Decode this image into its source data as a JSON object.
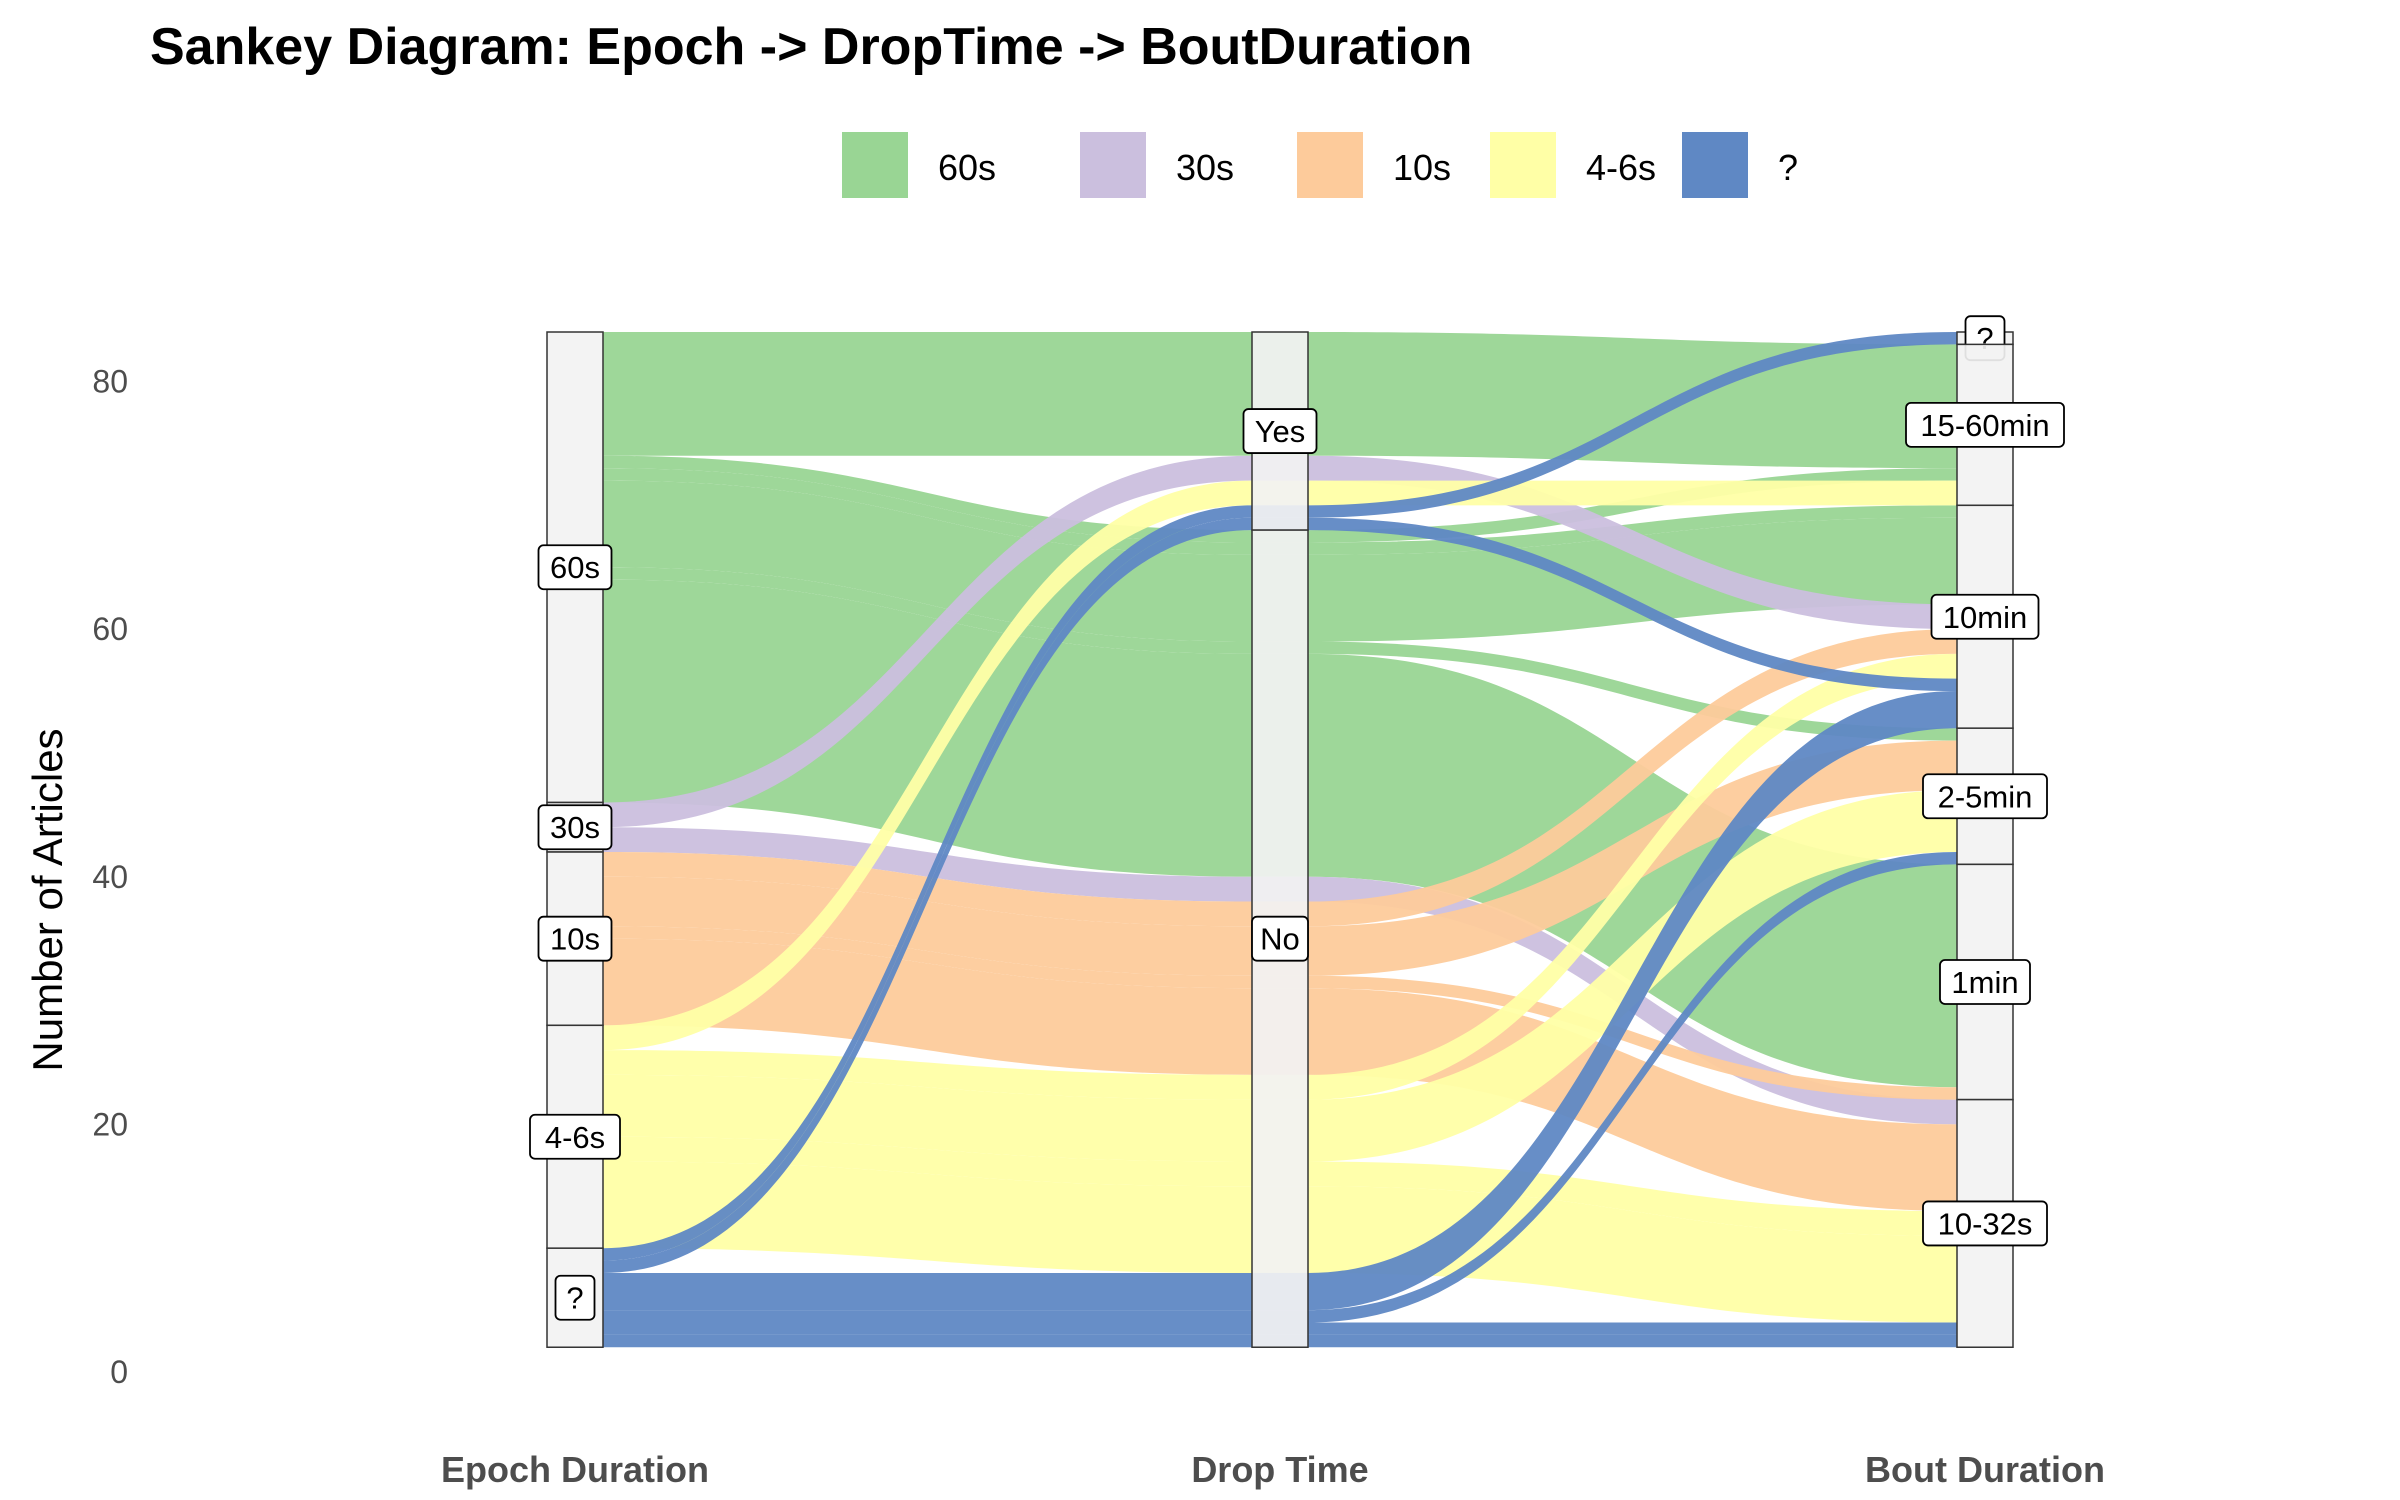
{
  "chart_data": {
    "type": "sankey",
    "title": "Sankey Diagram: Epoch -> DropTime -> BoutDuration",
    "ylabel": "Number of Articles",
    "ylim": [
      0,
      84
    ],
    "yticks": [
      0,
      20,
      40,
      60,
      80
    ],
    "axes": [
      "Epoch Duration",
      "Drop Time",
      "Bout Duration"
    ],
    "legend": {
      "placement": "top",
      "entries": [
        {
          "name": "60s",
          "color": "#99d594"
        },
        {
          "name": "30s",
          "color": "#cbbfde"
        },
        {
          "name": "10s",
          "color": "#fdcb9b"
        },
        {
          "name": "4-6s",
          "color": "#ffffa6"
        },
        {
          "name": "?",
          "color": "#5f88c4"
        }
      ]
    },
    "strata": [
      [
        "60s",
        "30s",
        "10s",
        "4-6s",
        "?"
      ],
      [
        "Yes",
        "No"
      ],
      [
        "?",
        "15-60min",
        "10min",
        "2-5min",
        "1min",
        "10-32s"
      ]
    ],
    "flows": [
      {
        "epoch": "60s",
        "drop": "Yes",
        "bout": "15-60min",
        "value": 10
      },
      {
        "epoch": "60s",
        "drop": "No",
        "bout": "15-60min",
        "value": 1
      },
      {
        "epoch": "60s",
        "drop": "No",
        "bout": "10min",
        "value": 1
      },
      {
        "epoch": "60s",
        "drop": "No",
        "bout": "10min",
        "value": 7
      },
      {
        "epoch": "60s",
        "drop": "No",
        "bout": "2-5min",
        "value": 1
      },
      {
        "epoch": "60s",
        "drop": "No",
        "bout": "1min",
        "value": 18
      },
      {
        "epoch": "30s",
        "drop": "Yes",
        "bout": "10min",
        "value": 2
      },
      {
        "epoch": "30s",
        "drop": "No",
        "bout": "10-32s",
        "value": 2
      },
      {
        "epoch": "10s",
        "drop": "No",
        "bout": "10min",
        "value": 2
      },
      {
        "epoch": "10s",
        "drop": "No",
        "bout": "2-5min",
        "value": 4
      },
      {
        "epoch": "10s",
        "drop": "No",
        "bout": "1min",
        "value": 1
      },
      {
        "epoch": "10s",
        "drop": "No",
        "bout": "10-32s",
        "value": 7
      },
      {
        "epoch": "4-6s",
        "drop": "Yes",
        "bout": "15-60min",
        "value": 2
      },
      {
        "epoch": "4-6s",
        "drop": "No",
        "bout": "10min",
        "value": 2
      },
      {
        "epoch": "4-6s",
        "drop": "No",
        "bout": "2-5min",
        "value": 5
      },
      {
        "epoch": "4-6s",
        "drop": "No",
        "bout": "10-32s",
        "value": 2
      },
      {
        "epoch": "4-6s",
        "drop": "No",
        "bout": "10-32s",
        "value": 7
      },
      {
        "epoch": "?",
        "drop": "Yes",
        "bout": "?",
        "value": 1
      },
      {
        "epoch": "?",
        "drop": "Yes",
        "bout": "10min",
        "value": 1
      },
      {
        "epoch": "?",
        "drop": "No",
        "bout": "10min",
        "value": 3
      },
      {
        "epoch": "?",
        "drop": "No",
        "bout": "2-5min",
        "value": 1
      },
      {
        "epoch": "?",
        "drop": "No",
        "bout": "10-32s",
        "value": 1
      },
      {
        "epoch": "?",
        "drop": "No",
        "bout": "10-32s",
        "value": 1
      }
    ]
  }
}
